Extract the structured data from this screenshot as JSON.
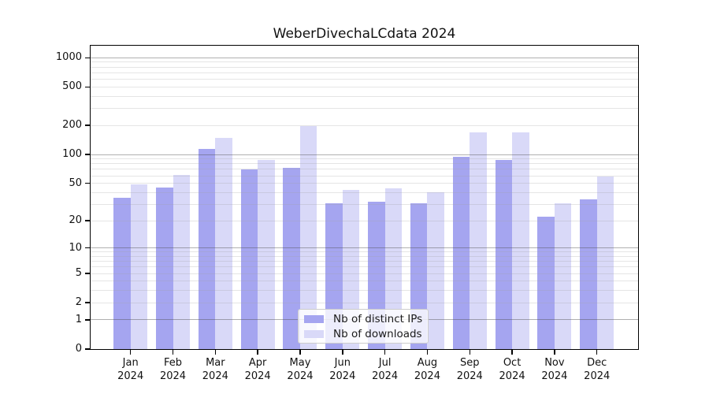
{
  "chart_data": {
    "type": "bar",
    "title": "WeberDivechaLCdata 2024",
    "categories": [
      "Jan",
      "Feb",
      "Mar",
      "Apr",
      "May",
      "Jun",
      "Jul",
      "Aug",
      "Sep",
      "Oct",
      "Nov",
      "Dec"
    ],
    "x_tick_second_line": "2024",
    "series": [
      {
        "name": "Nb of distinct IPs",
        "color": "#a5a5f0",
        "values": [
          35,
          45,
          115,
          70,
          72,
          31,
          32,
          31,
          95,
          88,
          22,
          34
        ]
      },
      {
        "name": "Nb of downloads",
        "color": "#d9d9f8",
        "values": [
          49,
          61,
          148,
          88,
          199,
          43,
          44,
          40,
          170,
          170,
          31,
          59
        ]
      }
    ],
    "y_axis": {
      "scale": "log10(1+y)",
      "tick_labels": [
        "0",
        "1",
        "2",
        "5",
        "10",
        "20",
        "50",
        "100",
        "200",
        "500",
        "1000"
      ],
      "tick_values": [
        0,
        1,
        2,
        5,
        10,
        20,
        50,
        100,
        200,
        500,
        1000
      ],
      "major_gridlines": [
        1,
        10,
        100,
        1000
      ],
      "minor_gridlines": [
        2,
        3,
        4,
        5,
        6,
        7,
        8,
        9,
        20,
        30,
        40,
        50,
        60,
        70,
        80,
        90,
        200,
        300,
        400,
        500,
        600,
        700,
        800,
        900
      ],
      "range_min": 0,
      "range_max": 1350
    },
    "grid": true,
    "legend_position": "lower center"
  }
}
